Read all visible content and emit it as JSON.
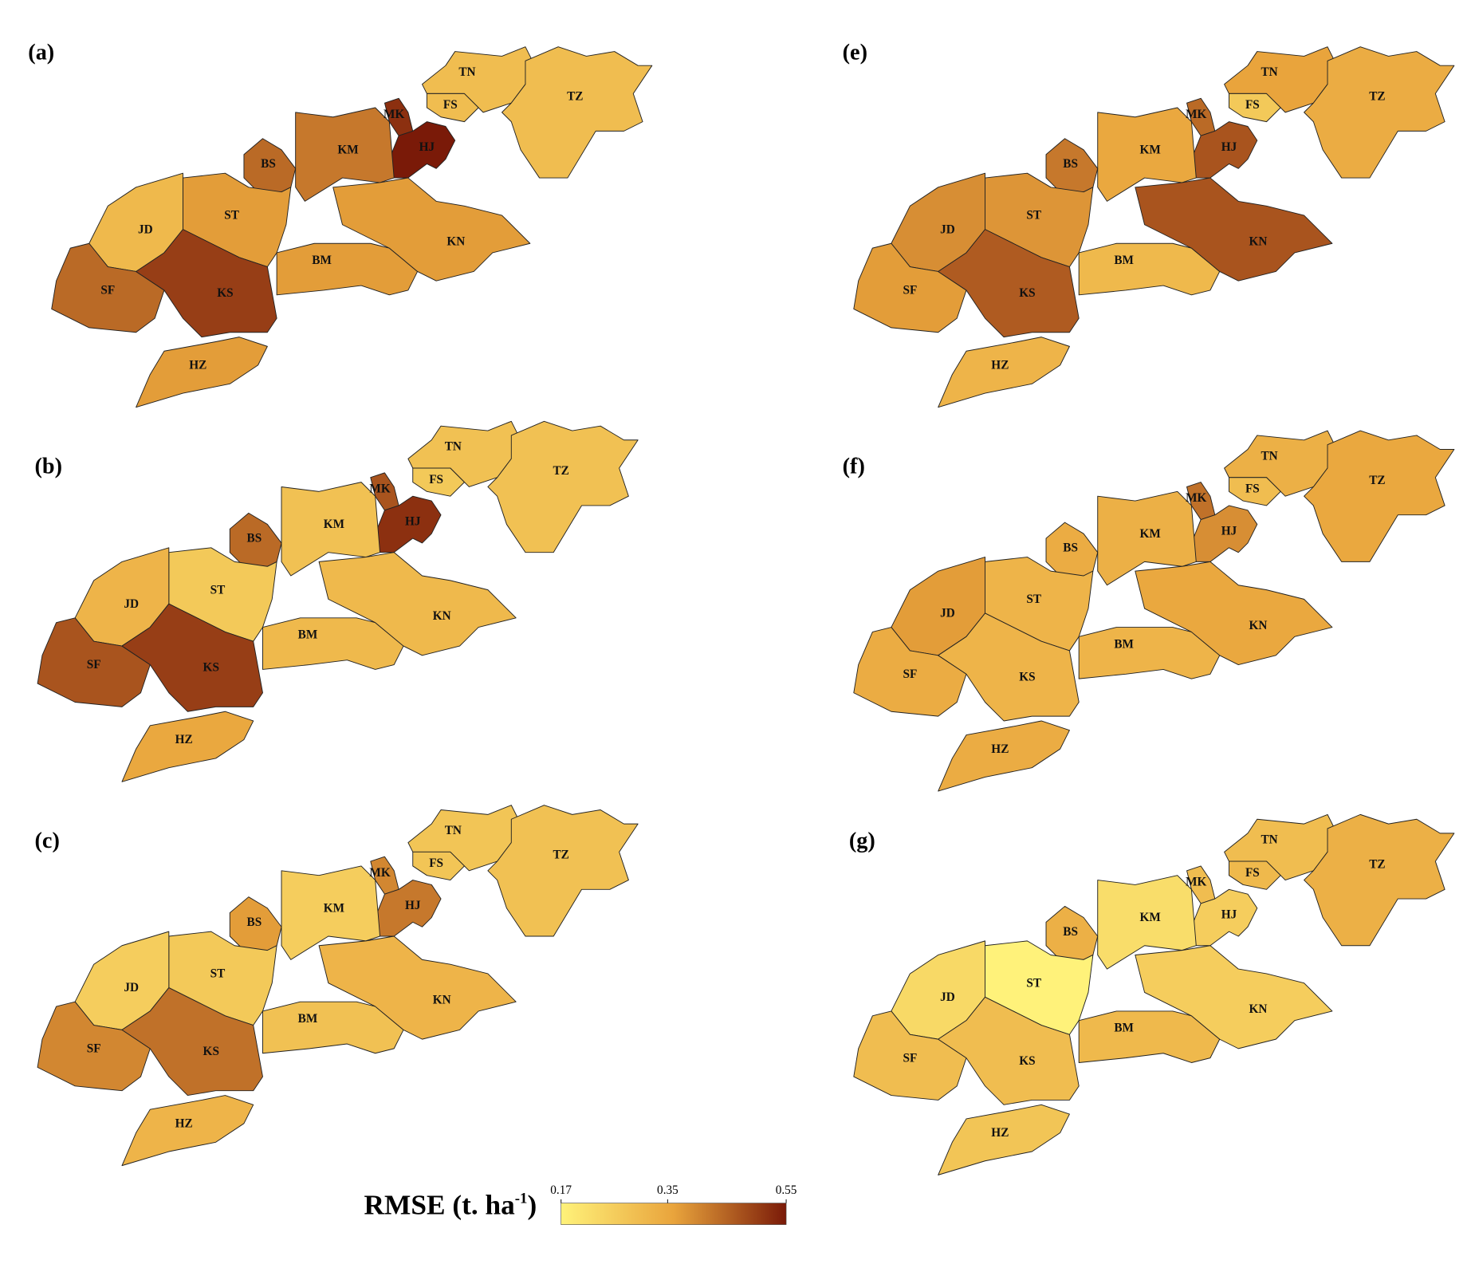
{
  "panels": [
    {
      "label": "(a)",
      "regions": [
        {
          "name": "TN",
          "value": 0.3
        },
        {
          "name": "TZ",
          "value": 0.3
        },
        {
          "name": "FS",
          "value": 0.3
        },
        {
          "name": "MK",
          "value": 0.52
        },
        {
          "name": "HJ",
          "value": 0.55
        },
        {
          "name": "KM",
          "value": 0.42
        },
        {
          "name": "BS",
          "value": 0.44
        },
        {
          "name": "ST",
          "value": 0.37
        },
        {
          "name": "JD",
          "value": 0.31
        },
        {
          "name": "SF",
          "value": 0.44
        },
        {
          "name": "KS",
          "value": 0.5
        },
        {
          "name": "BM",
          "value": 0.37
        },
        {
          "name": "KN",
          "value": 0.37
        },
        {
          "name": "HZ",
          "value": 0.37
        }
      ]
    },
    {
      "label": "(b)",
      "regions": [
        {
          "name": "TN",
          "value": 0.29
        },
        {
          "name": "TZ",
          "value": 0.29
        },
        {
          "name": "FS",
          "value": 0.27
        },
        {
          "name": "MK",
          "value": 0.47
        },
        {
          "name": "HJ",
          "value": 0.52
        },
        {
          "name": "KM",
          "value": 0.29
        },
        {
          "name": "BS",
          "value": 0.44
        },
        {
          "name": "ST",
          "value": 0.27
        },
        {
          "name": "JD",
          "value": 0.32
        },
        {
          "name": "SF",
          "value": 0.47
        },
        {
          "name": "KS",
          "value": 0.5
        },
        {
          "name": "BM",
          "value": 0.31
        },
        {
          "name": "KN",
          "value": 0.31
        },
        {
          "name": "HZ",
          "value": 0.35
        }
      ]
    },
    {
      "label": "(c)",
      "regions": [
        {
          "name": "TN",
          "value": 0.28
        },
        {
          "name": "TZ",
          "value": 0.29
        },
        {
          "name": "FS",
          "value": 0.28
        },
        {
          "name": "MK",
          "value": 0.4
        },
        {
          "name": "HJ",
          "value": 0.42
        },
        {
          "name": "KM",
          "value": 0.26
        },
        {
          "name": "BS",
          "value": 0.37
        },
        {
          "name": "ST",
          "value": 0.27
        },
        {
          "name": "JD",
          "value": 0.26
        },
        {
          "name": "SF",
          "value": 0.4
        },
        {
          "name": "KS",
          "value": 0.43
        },
        {
          "name": "BM",
          "value": 0.29
        },
        {
          "name": "KN",
          "value": 0.32
        },
        {
          "name": "HZ",
          "value": 0.32
        }
      ]
    },
    {
      "label": "(e)",
      "regions": [
        {
          "name": "TN",
          "value": 0.36
        },
        {
          "name": "TZ",
          "value": 0.34
        },
        {
          "name": "FS",
          "value": 0.27
        },
        {
          "name": "MK",
          "value": 0.44
        },
        {
          "name": "HJ",
          "value": 0.47
        },
        {
          "name": "KM",
          "value": 0.35
        },
        {
          "name": "BS",
          "value": 0.42
        },
        {
          "name": "ST",
          "value": 0.38
        },
        {
          "name": "JD",
          "value": 0.39
        },
        {
          "name": "SF",
          "value": 0.37
        },
        {
          "name": "KS",
          "value": 0.46
        },
        {
          "name": "BM",
          "value": 0.31
        },
        {
          "name": "KN",
          "value": 0.47
        },
        {
          "name": "HZ",
          "value": 0.32
        }
      ]
    },
    {
      "label": "(f)",
      "regions": [
        {
          "name": "TN",
          "value": 0.33
        },
        {
          "name": "TZ",
          "value": 0.35
        },
        {
          "name": "FS",
          "value": 0.3
        },
        {
          "name": "MK",
          "value": 0.43
        },
        {
          "name": "HJ",
          "value": 0.39
        },
        {
          "name": "KM",
          "value": 0.33
        },
        {
          "name": "BS",
          "value": 0.34
        },
        {
          "name": "ST",
          "value": 0.32
        },
        {
          "name": "JD",
          "value": 0.37
        },
        {
          "name": "SF",
          "value": 0.34
        },
        {
          "name": "KS",
          "value": 0.32
        },
        {
          "name": "BM",
          "value": 0.32
        },
        {
          "name": "KN",
          "value": 0.35
        },
        {
          "name": "HZ",
          "value": 0.34
        }
      ]
    },
    {
      "label": "(g)",
      "regions": [
        {
          "name": "TN",
          "value": 0.3
        },
        {
          "name": "TZ",
          "value": 0.33
        },
        {
          "name": "FS",
          "value": 0.31
        },
        {
          "name": "MK",
          "value": 0.3
        },
        {
          "name": "HJ",
          "value": 0.26
        },
        {
          "name": "KM",
          "value": 0.22
        },
        {
          "name": "BS",
          "value": 0.33
        },
        {
          "name": "ST",
          "value": 0.17
        },
        {
          "name": "JD",
          "value": 0.23
        },
        {
          "name": "SF",
          "value": 0.3
        },
        {
          "name": "KS",
          "value": 0.3
        },
        {
          "name": "BM",
          "value": 0.31
        },
        {
          "name": "KN",
          "value": 0.26
        },
        {
          "name": "HZ",
          "value": 0.28
        }
      ]
    }
  ],
  "colorbar": {
    "title": "RMSE (t. ha",
    "title_superscript": "-1",
    "title_close": ")",
    "lim": [
      0.17,
      0.55
    ],
    "ticks": [
      0.17,
      0.35,
      0.55
    ],
    "colormap": [
      "#fff27a",
      "#e9a43c",
      "#7a1a08"
    ]
  }
}
